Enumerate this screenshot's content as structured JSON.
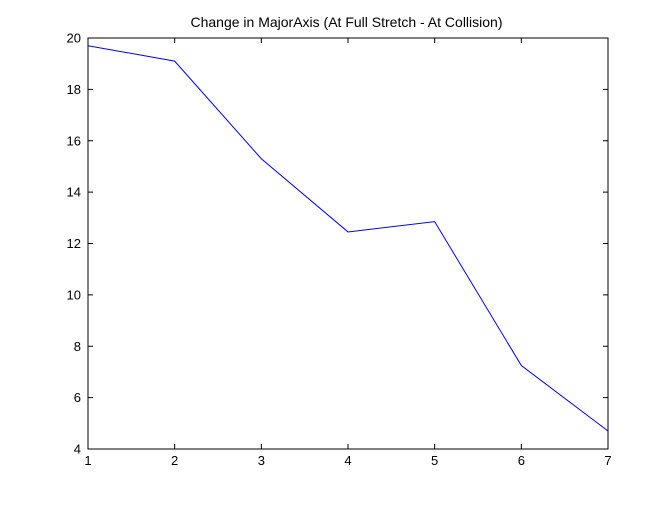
{
  "chart_data": {
    "type": "line",
    "title": "Change in MajorAxis (At Full Stretch - At Collision)",
    "xlabel": "",
    "ylabel": "",
    "xlim": [
      1,
      7
    ],
    "ylim": [
      4,
      20
    ],
    "xticks": [
      1,
      2,
      3,
      4,
      5,
      6,
      7
    ],
    "yticks": [
      4,
      6,
      8,
      10,
      12,
      14,
      16,
      18,
      20
    ],
    "grid": false,
    "legend": "none",
    "series": [
      {
        "color": "#0000ff",
        "x": [
          1,
          2,
          3,
          4,
          5,
          6,
          7
        ],
        "y": [
          19.7,
          19.1,
          15.3,
          12.45,
          12.85,
          7.25,
          4.7
        ]
      }
    ]
  }
}
